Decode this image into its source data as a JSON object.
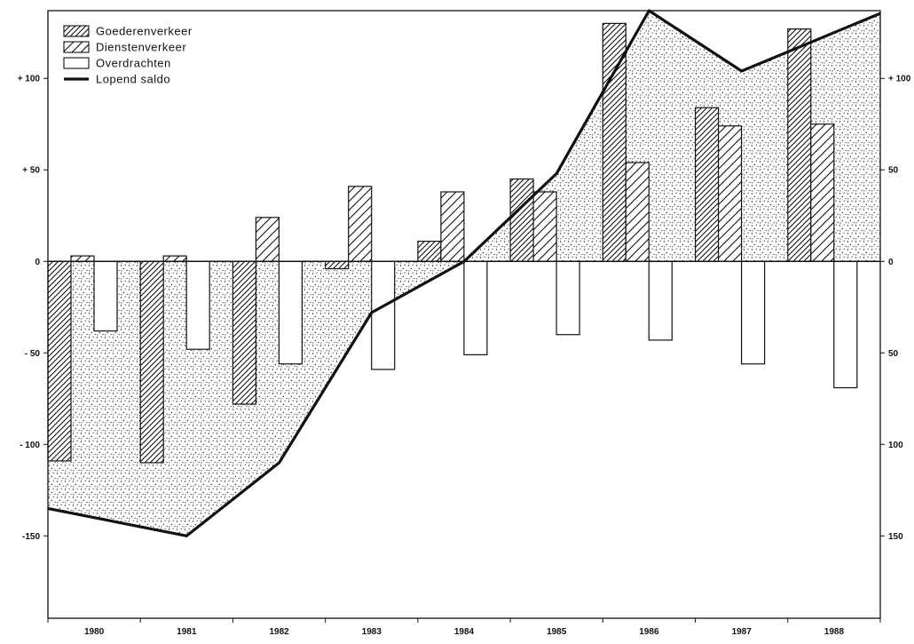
{
  "chart_data": {
    "type": "bar",
    "title": "",
    "xlabel": "",
    "ylabel": "",
    "ylim": [
      -195,
      137
    ],
    "grid": false,
    "legend_position": "top-left",
    "categories": [
      "1980",
      "1981",
      "1982",
      "1983",
      "1984",
      "1985",
      "1986",
      "1987",
      "1988"
    ],
    "y_ticks": [
      {
        "value": 100,
        "label": "+ 100"
      },
      {
        "value": 50,
        "label": "+ 50"
      },
      {
        "value": 0,
        "label": "0"
      },
      {
        "value": -50,
        "label": "- 50"
      },
      {
        "value": -100,
        "label": "- 100"
      },
      {
        "value": -150,
        "label": "-150"
      }
    ],
    "y_ticks_right": [
      {
        "value": 100,
        "label": "+ 100"
      },
      {
        "value": 50,
        "label": "50"
      },
      {
        "value": 0,
        "label": "0"
      },
      {
        "value": -50,
        "label": "50"
      },
      {
        "value": -100,
        "label": "100"
      },
      {
        "value": -150,
        "label": "150"
      }
    ],
    "legend": [
      {
        "key": "goederen",
        "label": "Goederenverkeer"
      },
      {
        "key": "diensten",
        "label": "Dienstenverkeer"
      },
      {
        "key": "overdrachten",
        "label": "Overdrachten"
      },
      {
        "key": "saldo",
        "label": "Lopend saldo"
      }
    ],
    "series": [
      {
        "key": "goederen",
        "name": "Goederenverkeer",
        "style": "dense-hatch",
        "values": [
          -109,
          -110,
          -78,
          -4,
          11,
          45,
          130,
          84,
          127
        ]
      },
      {
        "key": "diensten",
        "name": "Dienstenverkeer",
        "style": "wide-hatch",
        "values": [
          3,
          3,
          24,
          41,
          38,
          38,
          54,
          74,
          75
        ]
      },
      {
        "key": "overdrachten",
        "name": "Overdrachten",
        "style": "open",
        "values": [
          -38,
          -48,
          -56,
          -59,
          -51,
          -40,
          -43,
          -56,
          -69
        ]
      }
    ],
    "saldo_line": {
      "name": "Lopend saldo",
      "points": [
        {
          "x": "1980",
          "y": -140
        },
        {
          "x": "1981",
          "y": -150
        },
        {
          "x": "1982",
          "y": -110
        },
        {
          "x": "1983",
          "y": -28
        },
        {
          "x": "1984",
          "y": 0
        },
        {
          "x": "1985",
          "y": 48
        },
        {
          "x": "1986",
          "y": 137
        },
        {
          "x": "1987",
          "y": 104
        },
        {
          "x": "1988",
          "y": 125
        }
      ]
    },
    "colors": {
      "ink": "#111111",
      "background": "#ffffff"
    }
  }
}
